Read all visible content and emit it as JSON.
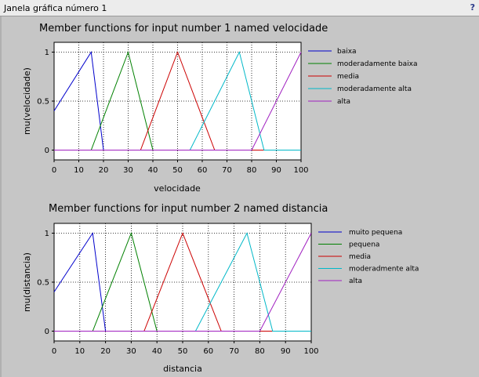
{
  "window": {
    "title": "Janela gráfica número 1",
    "help": "?"
  },
  "chart_data": [
    {
      "type": "line",
      "title": "Member functions for input number 1 named velocidade",
      "xlabel": "velocidade",
      "ylabel": "mu(velocidade)",
      "xlim": [
        0,
        100
      ],
      "ylim": [
        -0.1,
        1.1
      ],
      "xticks": [
        0,
        10,
        20,
        30,
        40,
        50,
        60,
        70,
        80,
        90,
        100
      ],
      "yticks": [
        0,
        0.5,
        1
      ],
      "grid": true,
      "legend_position": "right",
      "series": [
        {
          "name": "baixa",
          "color": "#0000cc",
          "points": [
            [
              0,
              0.4
            ],
            [
              15,
              1
            ],
            [
              20,
              0
            ],
            [
              100,
              0
            ]
          ]
        },
        {
          "name": "moderadamente baixa",
          "color": "#008000",
          "points": [
            [
              0,
              0
            ],
            [
              15,
              0
            ],
            [
              30,
              1
            ],
            [
              40,
              0
            ],
            [
              100,
              0
            ]
          ]
        },
        {
          "name": "media",
          "color": "#cc0000",
          "points": [
            [
              0,
              0
            ],
            [
              35,
              0
            ],
            [
              50,
              1
            ],
            [
              65,
              0
            ],
            [
              100,
              0
            ]
          ]
        },
        {
          "name": "moderadamente alta",
          "color": "#00b8c8",
          "points": [
            [
              0,
              0
            ],
            [
              55,
              0
            ],
            [
              75,
              1
            ],
            [
              85,
              0
            ],
            [
              100,
              0
            ]
          ]
        },
        {
          "name": "alta",
          "color": "#a020c0",
          "points": [
            [
              0,
              0
            ],
            [
              80,
              0
            ],
            [
              100,
              1
            ]
          ]
        }
      ]
    },
    {
      "type": "line",
      "title": "Member functions for input number 2 named distancia",
      "xlabel": "distancia",
      "ylabel": "mu(distancia)",
      "xlim": [
        0,
        100
      ],
      "ylim": [
        -0.1,
        1.1
      ],
      "xticks": [
        0,
        10,
        20,
        30,
        40,
        50,
        60,
        70,
        80,
        90,
        100
      ],
      "yticks": [
        0,
        0.5,
        1
      ],
      "grid": true,
      "legend_position": "right",
      "series": [
        {
          "name": "muito pequena",
          "color": "#0000cc",
          "points": [
            [
              0,
              0.4
            ],
            [
              15,
              1
            ],
            [
              20,
              0
            ],
            [
              100,
              0
            ]
          ]
        },
        {
          "name": "pequena",
          "color": "#008000",
          "points": [
            [
              0,
              0
            ],
            [
              15,
              0
            ],
            [
              30,
              1
            ],
            [
              40,
              0
            ],
            [
              100,
              0
            ]
          ]
        },
        {
          "name": "media",
          "color": "#cc0000",
          "points": [
            [
              0,
              0
            ],
            [
              35,
              0
            ],
            [
              50,
              1
            ],
            [
              65,
              0
            ],
            [
              100,
              0
            ]
          ]
        },
        {
          "name": "moderadmente alta",
          "color": "#00b8c8",
          "points": [
            [
              0,
              0
            ],
            [
              55,
              0
            ],
            [
              75,
              1
            ],
            [
              85,
              0
            ],
            [
              100,
              0
            ]
          ]
        },
        {
          "name": "alta",
          "color": "#a020c0",
          "points": [
            [
              0,
              0
            ],
            [
              80,
              0
            ],
            [
              100,
              1
            ]
          ]
        }
      ]
    }
  ]
}
